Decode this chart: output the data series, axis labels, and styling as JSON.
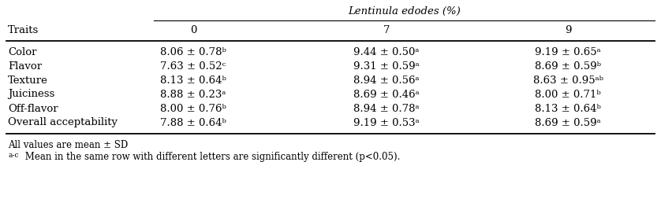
{
  "header_main": "Lentinula edodes (%)",
  "col_header": "Traits",
  "sub_headers": [
    "0",
    "7",
    "9"
  ],
  "rows": [
    {
      "trait": "Color",
      "values": [
        "8.06 ± 0.78ᵇ",
        "9.44 ± 0.50ᵃ",
        "9.19 ± 0.65ᵃ"
      ]
    },
    {
      "trait": "Flavor",
      "values": [
        "7.63 ± 0.52ᶜ",
        "9.31 ± 0.59ᵃ",
        "8.69 ± 0.59ᵇ"
      ]
    },
    {
      "trait": "Texture",
      "values": [
        "8.13 ± 0.64ᵇ",
        "8.94 ± 0.56ᵃ",
        "8.63 ± 0.95ᵃᵇ"
      ]
    },
    {
      "trait": "Juiciness",
      "values": [
        "8.88 ± 0.23ᵃ",
        "8.69 ± 0.46ᵃ",
        "8.00 ± 0.71ᵇ"
      ]
    },
    {
      "trait": "Off-flavor",
      "values": [
        "8.00 ± 0.76ᵇ",
        "8.94 ± 0.78ᵃ",
        "8.13 ± 0.64ᵇ"
      ]
    },
    {
      "trait": "Overall acceptability",
      "values": [
        "7.88 ± 0.64ᵇ",
        "9.19 ± 0.53ᵃ",
        "8.69 ± 0.59ᵃ"
      ]
    }
  ],
  "footnote1": "All values are mean ± SD",
  "footnote2_super": "a-c",
  "footnote2_text": " Mean in the same row with different letters are significantly different (p<0.05).",
  "bg_color": "#ffffff",
  "text_color": "#000000",
  "font_size": 9.5,
  "small_font_size": 8.5
}
